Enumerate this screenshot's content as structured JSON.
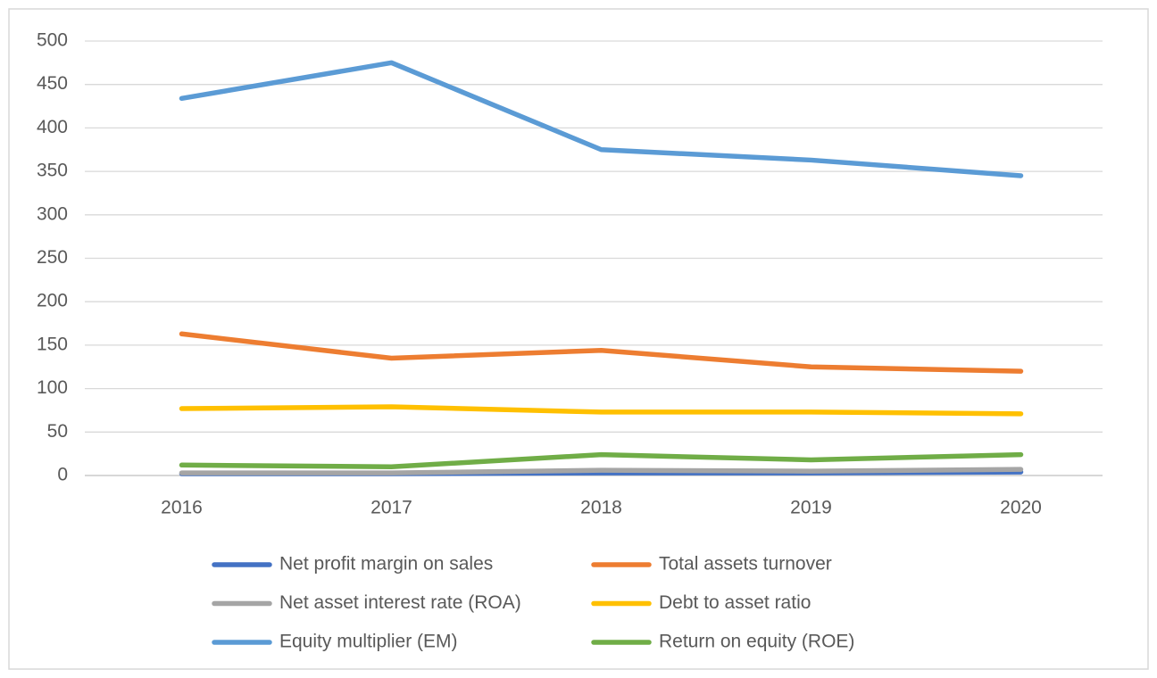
{
  "chart_data": {
    "type": "line",
    "categories": [
      "2016",
      "2017",
      "2018",
      "2019",
      "2020"
    ],
    "series": [
      {
        "name": "Net profit margin on sales",
        "color": "#4472c4",
        "values": [
          2,
          2,
          3,
          3,
          4
        ]
      },
      {
        "name": "Total assets turnover",
        "color": "#ed7d31",
        "values": [
          163,
          135,
          144,
          125,
          120
        ]
      },
      {
        "name": "Net asset interest rate (ROA)",
        "color": "#a5a5a5",
        "values": [
          3,
          3,
          6,
          5,
          7
        ]
      },
      {
        "name": "Debt to asset ratio",
        "color": "#ffc000",
        "values": [
          77,
          79,
          73,
          73,
          71
        ]
      },
      {
        "name": "Equity multiplier (EM)",
        "color": "#5b9bd5",
        "values": [
          434,
          475,
          375,
          363,
          345
        ]
      },
      {
        "name": "Return on equity (ROE)",
        "color": "#70ad47",
        "values": [
          12,
          10,
          24,
          18,
          24
        ]
      }
    ],
    "ylim": [
      0,
      500
    ],
    "yticks": [
      0,
      50,
      100,
      150,
      200,
      250,
      300,
      350,
      400,
      450,
      500
    ],
    "grid": true,
    "legend": "bottom"
  }
}
